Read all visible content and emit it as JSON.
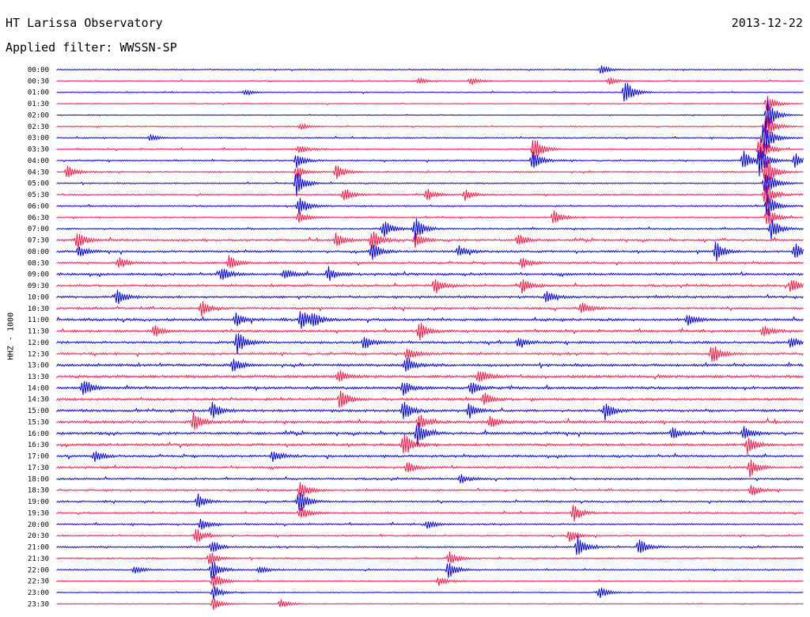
{
  "header": {
    "title": "HT Larissa Observatory",
    "date": "2013-12-22",
    "filter": "Applied filter: WWSSN-SP"
  },
  "chart_data": {
    "type": "line",
    "title": "HT Larissa Observatory",
    "ylabel": "HHZ - 1000",
    "row_labels": [
      "00:00",
      "00:30",
      "01:00",
      "01:30",
      "02:00",
      "02:30",
      "03:00",
      "03:30",
      "04:00",
      "04:30",
      "05:00",
      "05:30",
      "06:00",
      "06:30",
      "07:00",
      "07:30",
      "08:00",
      "08:30",
      "09:00",
      "09:30",
      "10:00",
      "10:30",
      "11:00",
      "11:30",
      "12:00",
      "12:30",
      "13:00",
      "13:30",
      "14:00",
      "14:30",
      "15:00",
      "15:30",
      "16:00",
      "16:30",
      "17:00",
      "17:30",
      "18:00",
      "18:30",
      "19:00",
      "19:30",
      "20:00",
      "20:30",
      "21:00",
      "21:30",
      "22:00",
      "22:30",
      "23:00",
      "23:30"
    ],
    "colors": [
      "#0000e0",
      "#ff1744"
    ],
    "noise_level": [
      0.3,
      0.35,
      0.32,
      0.3,
      0.22,
      0.3,
      0.4,
      0.4,
      0.45,
      0.45,
      0.4,
      0.45,
      0.45,
      0.45,
      0.55,
      0.65,
      0.65,
      0.6,
      0.75,
      0.7,
      0.7,
      0.7,
      0.8,
      0.7,
      0.75,
      0.7,
      0.8,
      0.85,
      0.8,
      0.75,
      0.8,
      0.85,
      0.8,
      0.75,
      0.7,
      0.65,
      0.6,
      0.55,
      0.55,
      0.5,
      0.5,
      0.5,
      0.5,
      0.45,
      0.4,
      0.35,
      0.3,
      0.3
    ],
    "events": [
      {
        "row": 0,
        "x": 760,
        "amp": 6
      },
      {
        "row": 1,
        "x": 595,
        "amp": 5
      },
      {
        "row": 1,
        "x": 770,
        "amp": 5
      },
      {
        "row": 1,
        "x": 530,
        "amp": 4
      },
      {
        "row": 2,
        "x": 790,
        "amp": 18
      },
      {
        "row": 2,
        "x": 310,
        "amp": 4
      },
      {
        "row": 3,
        "x": 970,
        "amp": 12
      },
      {
        "row": 4,
        "x": 970,
        "amp": 22
      },
      {
        "row": 5,
        "x": 968,
        "amp": 20
      },
      {
        "row": 5,
        "x": 380,
        "amp": 4
      },
      {
        "row": 6,
        "x": 966,
        "amp": 25
      },
      {
        "row": 6,
        "x": 190,
        "amp": 4
      },
      {
        "row": 7,
        "x": 675,
        "amp": 18
      },
      {
        "row": 7,
        "x": 960,
        "amp": 20
      },
      {
        "row": 7,
        "x": 378,
        "amp": 6
      },
      {
        "row": 8,
        "x": 960,
        "amp": 20
      },
      {
        "row": 8,
        "x": 940,
        "amp": 14
      },
      {
        "row": 8,
        "x": 1005,
        "amp": 10
      },
      {
        "row": 8,
        "x": 673,
        "amp": 14
      },
      {
        "row": 8,
        "x": 375,
        "amp": 10
      },
      {
        "row": 9,
        "x": 85,
        "amp": 10
      },
      {
        "row": 9,
        "x": 425,
        "amp": 10
      },
      {
        "row": 9,
        "x": 968,
        "amp": 22
      },
      {
        "row": 9,
        "x": 375,
        "amp": 8
      },
      {
        "row": 10,
        "x": 375,
        "amp": 18
      },
      {
        "row": 10,
        "x": 968,
        "amp": 20
      },
      {
        "row": 11,
        "x": 435,
        "amp": 10
      },
      {
        "row": 11,
        "x": 540,
        "amp": 8
      },
      {
        "row": 11,
        "x": 588,
        "amp": 8
      },
      {
        "row": 11,
        "x": 968,
        "amp": 18
      },
      {
        "row": 12,
        "x": 378,
        "amp": 14
      },
      {
        "row": 12,
        "x": 970,
        "amp": 16
      },
      {
        "row": 13,
        "x": 700,
        "amp": 10
      },
      {
        "row": 13,
        "x": 970,
        "amp": 14
      },
      {
        "row": 13,
        "x": 378,
        "amp": 8
      },
      {
        "row": 14,
        "x": 525,
        "amp": 16
      },
      {
        "row": 14,
        "x": 485,
        "amp": 12
      },
      {
        "row": 14,
        "x": 975,
        "amp": 14
      },
      {
        "row": 15,
        "x": 98,
        "amp": 12
      },
      {
        "row": 15,
        "x": 425,
        "amp": 10
      },
      {
        "row": 15,
        "x": 470,
        "amp": 14
      },
      {
        "row": 15,
        "x": 525,
        "amp": 10
      },
      {
        "row": 15,
        "x": 655,
        "amp": 8
      },
      {
        "row": 16,
        "x": 905,
        "amp": 14
      },
      {
        "row": 16,
        "x": 1005,
        "amp": 12
      },
      {
        "row": 16,
        "x": 470,
        "amp": 12
      },
      {
        "row": 16,
        "x": 100,
        "amp": 8
      },
      {
        "row": 16,
        "x": 580,
        "amp": 8
      },
      {
        "row": 17,
        "x": 150,
        "amp": 8
      },
      {
        "row": 17,
        "x": 290,
        "amp": 10
      },
      {
        "row": 17,
        "x": 660,
        "amp": 8
      },
      {
        "row": 18,
        "x": 280,
        "amp": 10
      },
      {
        "row": 18,
        "x": 415,
        "amp": 10
      },
      {
        "row": 18,
        "x": 360,
        "amp": 8
      },
      {
        "row": 19,
        "x": 550,
        "amp": 12
      },
      {
        "row": 19,
        "x": 660,
        "amp": 10
      },
      {
        "row": 19,
        "x": 1000,
        "amp": 10
      },
      {
        "row": 20,
        "x": 148,
        "amp": 12
      },
      {
        "row": 20,
        "x": 690,
        "amp": 8
      },
      {
        "row": 21,
        "x": 255,
        "amp": 10
      },
      {
        "row": 21,
        "x": 735,
        "amp": 8
      },
      {
        "row": 22,
        "x": 380,
        "amp": 14
      },
      {
        "row": 22,
        "x": 395,
        "amp": 10
      },
      {
        "row": 22,
        "x": 298,
        "amp": 10
      },
      {
        "row": 22,
        "x": 870,
        "amp": 8
      },
      {
        "row": 23,
        "x": 530,
        "amp": 12
      },
      {
        "row": 23,
        "x": 965,
        "amp": 8
      },
      {
        "row": 23,
        "x": 195,
        "amp": 8
      },
      {
        "row": 24,
        "x": 300,
        "amp": 16
      },
      {
        "row": 24,
        "x": 460,
        "amp": 10
      },
      {
        "row": 24,
        "x": 1000,
        "amp": 8
      },
      {
        "row": 24,
        "x": 655,
        "amp": 8
      },
      {
        "row": 25,
        "x": 900,
        "amp": 14
      },
      {
        "row": 25,
        "x": 515,
        "amp": 10
      },
      {
        "row": 26,
        "x": 513,
        "amp": 12
      },
      {
        "row": 26,
        "x": 295,
        "amp": 10
      },
      {
        "row": 27,
        "x": 605,
        "amp": 10
      },
      {
        "row": 27,
        "x": 428,
        "amp": 8
      },
      {
        "row": 28,
        "x": 105,
        "amp": 12
      },
      {
        "row": 28,
        "x": 510,
        "amp": 10
      },
      {
        "row": 28,
        "x": 595,
        "amp": 10
      },
      {
        "row": 29,
        "x": 430,
        "amp": 14
      },
      {
        "row": 29,
        "x": 612,
        "amp": 8
      },
      {
        "row": 30,
        "x": 510,
        "amp": 14
      },
      {
        "row": 30,
        "x": 268,
        "amp": 12
      },
      {
        "row": 30,
        "x": 593,
        "amp": 10
      },
      {
        "row": 30,
        "x": 765,
        "amp": 12
      },
      {
        "row": 31,
        "x": 245,
        "amp": 14
      },
      {
        "row": 31,
        "x": 620,
        "amp": 8
      },
      {
        "row": 31,
        "x": 530,
        "amp": 10
      },
      {
        "row": 32,
        "x": 528,
        "amp": 16
      },
      {
        "row": 32,
        "x": 940,
        "amp": 10
      },
      {
        "row": 32,
        "x": 850,
        "amp": 8
      },
      {
        "row": 33,
        "x": 510,
        "amp": 16
      },
      {
        "row": 33,
        "x": 945,
        "amp": 12
      },
      {
        "row": 34,
        "x": 120,
        "amp": 8
      },
      {
        "row": 34,
        "x": 345,
        "amp": 8
      },
      {
        "row": 35,
        "x": 948,
        "amp": 12
      },
      {
        "row": 35,
        "x": 515,
        "amp": 8
      },
      {
        "row": 36,
        "x": 582,
        "amp": 6
      },
      {
        "row": 37,
        "x": 380,
        "amp": 12
      },
      {
        "row": 37,
        "x": 950,
        "amp": 8
      },
      {
        "row": 38,
        "x": 378,
        "amp": 16
      },
      {
        "row": 38,
        "x": 250,
        "amp": 10
      },
      {
        "row": 39,
        "x": 725,
        "amp": 12
      },
      {
        "row": 39,
        "x": 380,
        "amp": 10
      },
      {
        "row": 40,
        "x": 254,
        "amp": 8
      },
      {
        "row": 40,
        "x": 540,
        "amp": 6
      },
      {
        "row": 41,
        "x": 248,
        "amp": 10
      },
      {
        "row": 41,
        "x": 720,
        "amp": 8
      },
      {
        "row": 42,
        "x": 730,
        "amp": 14
      },
      {
        "row": 42,
        "x": 808,
        "amp": 12
      },
      {
        "row": 42,
        "x": 268,
        "amp": 10
      },
      {
        "row": 43,
        "x": 265,
        "amp": 10
      },
      {
        "row": 43,
        "x": 568,
        "amp": 10
      },
      {
        "row": 44,
        "x": 268,
        "amp": 14
      },
      {
        "row": 44,
        "x": 567,
        "amp": 12
      },
      {
        "row": 44,
        "x": 328,
        "amp": 6
      },
      {
        "row": 44,
        "x": 170,
        "amp": 6
      },
      {
        "row": 45,
        "x": 270,
        "amp": 12
      },
      {
        "row": 45,
        "x": 555,
        "amp": 6
      },
      {
        "row": 46,
        "x": 758,
        "amp": 8
      },
      {
        "row": 46,
        "x": 270,
        "amp": 10
      },
      {
        "row": 47,
        "x": 270,
        "amp": 8
      },
      {
        "row": 47,
        "x": 355,
        "amp": 6
      }
    ]
  }
}
